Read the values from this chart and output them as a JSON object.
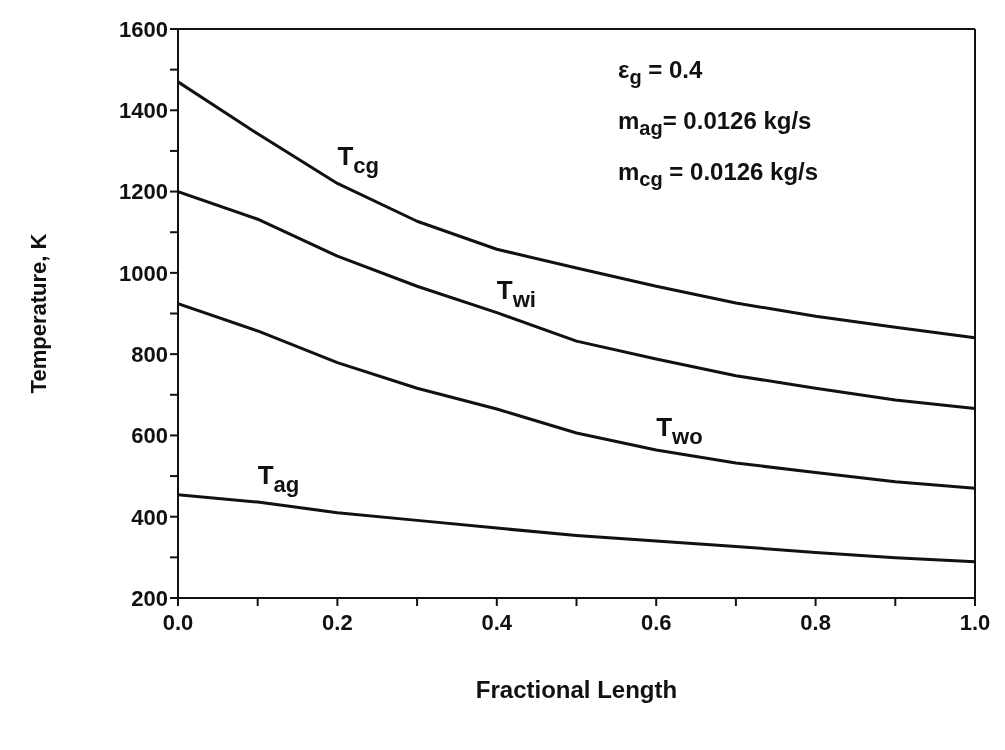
{
  "chart_data": {
    "type": "line",
    "xlabel": "Fractional Length",
    "ylabel": "Temperature, K",
    "x": [
      0,
      0.1,
      0.2,
      0.3,
      0.4,
      0.5,
      0.6,
      0.7,
      0.8,
      0.9,
      1.0
    ],
    "series": [
      {
        "name": "T$_{cg}$",
        "color": "#111111",
        "values": [
          1470,
          1342,
          1220,
          1127,
          1058,
          1012,
          967,
          926,
          893,
          866,
          840
        ]
      },
      {
        "name": "T$_{wi}$",
        "color": "#111111",
        "values": [
          1200,
          1132,
          1041,
          967,
          902,
          832,
          788,
          747,
          716,
          687,
          666
        ]
      },
      {
        "name": "T$_{wo}$",
        "color": "#111111",
        "values": [
          924,
          857,
          779,
          716,
          665,
          606,
          564,
          532,
          509,
          486,
          470
        ]
      },
      {
        "name": "T$_{ag}$",
        "color": "#111111",
        "values": [
          454,
          436,
          410,
          391,
          372,
          354,
          340,
          327,
          312,
          299,
          289
        ]
      }
    ],
    "xlim": [
      0,
      1.0
    ],
    "xticks": [
      {
        "value": 0,
        "label": "0.0"
      },
      {
        "value": 0.1,
        "label": null
      },
      {
        "value": 0.2,
        "label": "0.2"
      },
      {
        "value": 0.3,
        "label": null
      },
      {
        "value": 0.4,
        "label": "0.4"
      },
      {
        "value": 0.5,
        "label": null
      },
      {
        "value": 0.6,
        "label": "0.6"
      },
      {
        "value": 0.7,
        "label": null
      },
      {
        "value": 0.8,
        "label": "0.8"
      },
      {
        "value": 0.9,
        "label": null
      },
      {
        "value": 1.0,
        "label": "1.0"
      }
    ],
    "ylim": [
      200,
      1600
    ],
    "yticks": [
      200,
      {
        "value": 300,
        "label": null
      },
      400,
      {
        "value": 500,
        "label": null
      },
      600,
      {
        "value": 700,
        "label": null
      },
      800,
      {
        "value": 900,
        "label": null
      },
      1000,
      {
        "value": 1100,
        "label": null
      },
      1200,
      {
        "value": 1300,
        "label": null
      },
      1400,
      {
        "value": 1500,
        "label": null
      },
      1600
    ],
    "grid": false,
    "legend": false,
    "marker": "none",
    "line_style": "solid",
    "annotations": [
      "ε$_{g}$ = 0.4",
      "m$_{ag}$= 0.0126 kg/s",
      "m$_{cg}$ = 0.0126 kg/s"
    ]
  }
}
